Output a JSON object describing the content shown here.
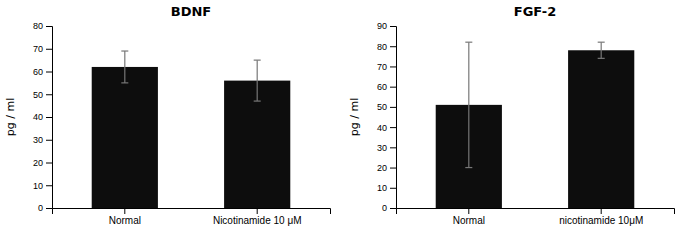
{
  "chart_data": [
    {
      "type": "bar",
      "title": "BDNF",
      "ylabel": "pg / ml",
      "categories": [
        "Normal",
        "Nicotinamide 10 μM"
      ],
      "values": [
        62,
        56
      ],
      "errors": [
        7,
        9
      ],
      "color": "#0d0d0d",
      "ylim": [
        0,
        80
      ],
      "yticks": [
        0,
        10,
        20,
        30,
        40,
        50,
        60,
        70,
        80
      ]
    },
    {
      "type": "bar",
      "title": "FGF-2",
      "ylabel": "pg / ml",
      "categories": [
        "Normal",
        "nicotinamide 10μM"
      ],
      "values": [
        51,
        78
      ],
      "errors": [
        31,
        4
      ],
      "color": "#0d0d0d",
      "ylim": [
        0,
        90
      ],
      "yticks": [
        0,
        10,
        20,
        30,
        40,
        50,
        60,
        70,
        80,
        90
      ]
    }
  ]
}
